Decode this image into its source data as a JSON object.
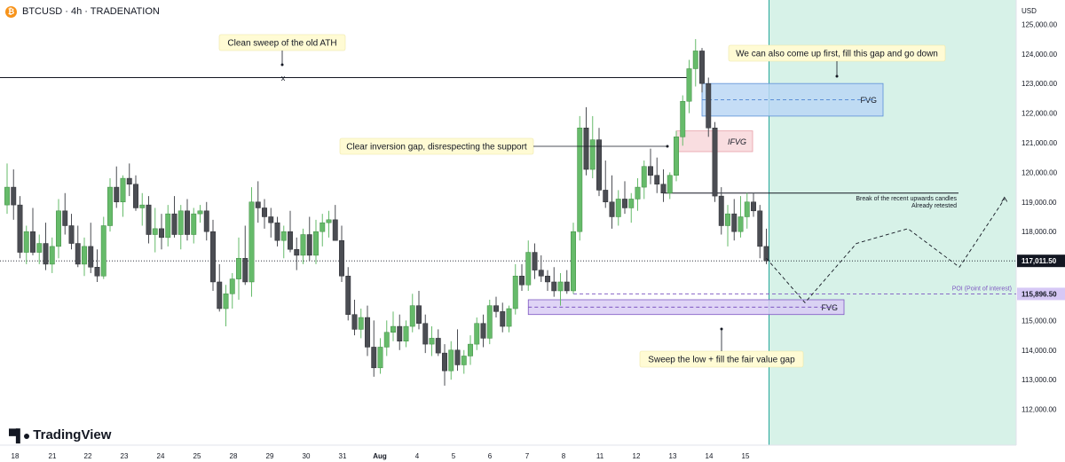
{
  "header": {
    "icon": "bitcoin-icon",
    "title": "BTCUSD · 4h · TRADENATION"
  },
  "logo": {
    "icon": "tradingview-logo-icon",
    "text": "TradingView"
  },
  "colors": {
    "up": "#66bb6a",
    "down": "#4b4d53",
    "projection_zone": "#d7f2e8",
    "fvg_blue": "#bbd7f5",
    "fvg_blue_border": "#5b8fd6",
    "ifvg_red": "#f8d7da",
    "fvg_purple": "#d9ccf5",
    "fvg_purple_border": "#7e57c2",
    "callout": "#fffbd4",
    "price_label": "#131722",
    "poi_label": "#d6c8f5"
  },
  "chart_data": {
    "type": "candlestick",
    "symbol": "BTCUSD",
    "timeframe": "4h",
    "y_axis": {
      "title": "USD",
      "range": [
        111200,
        125700
      ],
      "ticks": [
        "112,000.00",
        "113,000.00",
        "114,000.00",
        "115,000.00",
        "116,000.00",
        "117,000.00",
        "118,000.00",
        "119,000.00",
        "120,000.00",
        "121,000.00",
        "122,000.00",
        "123,000.00",
        "124,000.00",
        "125,000.00"
      ]
    },
    "x_axis": {
      "ticks": [
        "18",
        "21",
        "22",
        "23",
        "24",
        "25",
        "28",
        "29",
        "30",
        "31",
        "Aug",
        "4",
        "5",
        "6",
        "7",
        "8",
        "11",
        "12",
        "13",
        "14",
        "15"
      ]
    },
    "candles": [
      [
        118900,
        120300,
        118600,
        119500
      ],
      [
        119500,
        120100,
        118400,
        118900
      ],
      [
        118900,
        119200,
        117100,
        117300
      ],
      [
        117300,
        118200,
        116900,
        118000
      ],
      [
        118000,
        118800,
        117200,
        117300
      ],
      [
        117300,
        117900,
        116900,
        117600
      ],
      [
        117600,
        118300,
        116700,
        116900
      ],
      [
        116900,
        117800,
        116600,
        117500
      ],
      [
        117500,
        119100,
        117100,
        118700
      ],
      [
        118700,
        119300,
        117900,
        118200
      ],
      [
        118200,
        118600,
        117400,
        117600
      ],
      [
        117600,
        118200,
        116800,
        116900
      ],
      [
        116900,
        117800,
        116500,
        117500
      ],
      [
        117500,
        118300,
        116600,
        116800
      ],
      [
        116800,
        117400,
        116300,
        116500
      ],
      [
        116500,
        118500,
        116400,
        118200
      ],
      [
        118200,
        119800,
        118000,
        119500
      ],
      [
        119500,
        120200,
        118800,
        119000
      ],
      [
        119000,
        119900,
        118500,
        119800
      ],
      [
        119800,
        120300,
        119200,
        119600
      ],
      [
        119600,
        119900,
        118700,
        118800
      ],
      [
        118800,
        119300,
        118200,
        118900
      ],
      [
        118900,
        119200,
        117600,
        117900
      ],
      [
        117900,
        118800,
        117300,
        118100
      ],
      [
        118100,
        118600,
        117400,
        117800
      ],
      [
        117800,
        118900,
        117500,
        118600
      ],
      [
        118600,
        119200,
        117800,
        117900
      ],
      [
        117900,
        118900,
        117400,
        118700
      ],
      [
        118700,
        119100,
        117700,
        117900
      ],
      [
        117900,
        118800,
        117600,
        118600
      ],
      [
        118600,
        118900,
        118300,
        118700
      ],
      [
        118700,
        119000,
        117700,
        118000
      ],
      [
        118000,
        118400,
        116000,
        116300
      ],
      [
        116300,
        116900,
        115300,
        115400
      ],
      [
        115400,
        116200,
        114800,
        115900
      ],
      [
        115900,
        116600,
        115400,
        116400
      ],
      [
        116400,
        117800,
        115700,
        117100
      ],
      [
        117100,
        118200,
        116200,
        116300
      ],
      [
        116300,
        119500,
        115800,
        119000
      ],
      [
        119000,
        119700,
        118300,
        118800
      ],
      [
        118800,
        119100,
        118100,
        118500
      ],
      [
        118500,
        118800,
        117800,
        118300
      ],
      [
        118300,
        118500,
        117500,
        117700
      ],
      [
        117700,
        118200,
        117100,
        118000
      ],
      [
        118000,
        118700,
        117300,
        117400
      ],
      [
        117400,
        117800,
        116700,
        117200
      ],
      [
        117200,
        118100,
        116900,
        117900
      ],
      [
        117900,
        118500,
        117000,
        117200
      ],
      [
        117200,
        118400,
        116900,
        118000
      ],
      [
        118000,
        118600,
        117500,
        118300
      ],
      [
        118300,
        118700,
        117800,
        118400
      ],
      [
        118400,
        118900,
        117700,
        117700
      ],
      [
        117700,
        118200,
        116300,
        116500
      ],
      [
        116500,
        116800,
        115000,
        115200
      ],
      [
        115200,
        115700,
        114500,
        114700
      ],
      [
        114700,
        115400,
        114400,
        115100
      ],
      [
        115100,
        115500,
        113800,
        114100
      ],
      [
        114100,
        115000,
        113100,
        113400
      ],
      [
        113400,
        114400,
        113200,
        114100
      ],
      [
        114100,
        115000,
        113800,
        114600
      ],
      [
        114600,
        115300,
        114300,
        114800
      ],
      [
        114800,
        115200,
        114000,
        114300
      ],
      [
        114300,
        115000,
        114100,
        114800
      ],
      [
        114800,
        115900,
        114600,
        115500
      ],
      [
        115500,
        116000,
        114700,
        114900
      ],
      [
        114900,
        115200,
        113900,
        114200
      ],
      [
        114200,
        114800,
        113800,
        114400
      ],
      [
        114400,
        114700,
        113800,
        113900
      ],
      [
        113900,
        114200,
        112800,
        113300
      ],
      [
        113300,
        114300,
        113000,
        114000
      ],
      [
        114000,
        114700,
        113300,
        113500
      ],
      [
        113500,
        114000,
        113200,
        113800
      ],
      [
        113800,
        114500,
        113500,
        114200
      ],
      [
        114200,
        115100,
        114000,
        114900
      ],
      [
        114900,
        115200,
        114100,
        114400
      ],
      [
        114400,
        115700,
        114200,
        115500
      ],
      [
        115500,
        115800,
        115100,
        115300
      ],
      [
        115300,
        115600,
        114600,
        114800
      ],
      [
        114800,
        115500,
        114600,
        115400
      ],
      [
        115400,
        116900,
        115200,
        116500
      ],
      [
        116500,
        116900,
        116000,
        116200
      ],
      [
        116200,
        117700,
        116000,
        117300
      ],
      [
        117300,
        117600,
        116400,
        116700
      ],
      [
        116700,
        117200,
        116300,
        116500
      ],
      [
        116500,
        116700,
        116000,
        116300
      ],
      [
        116300,
        116800,
        115800,
        116000
      ],
      [
        116000,
        116600,
        115500,
        116300
      ],
      [
        116300,
        116700,
        115900,
        116000
      ],
      [
        116000,
        118300,
        115900,
        118000
      ],
      [
        118000,
        121900,
        117700,
        121500
      ],
      [
        121500,
        122200,
        119900,
        120100
      ],
      [
        120100,
        121900,
        119800,
        121100
      ],
      [
        121100,
        121500,
        119200,
        119400
      ],
      [
        119400,
        120400,
        118800,
        119000
      ],
      [
        119000,
        119900,
        118100,
        118500
      ],
      [
        118500,
        119400,
        118200,
        119100
      ],
      [
        119100,
        119700,
        118600,
        118800
      ],
      [
        118800,
        119300,
        118300,
        119100
      ],
      [
        119100,
        119800,
        118700,
        119500
      ],
      [
        119500,
        120400,
        119100,
        120200
      ],
      [
        120200,
        120800,
        119600,
        119900
      ],
      [
        119900,
        120500,
        119300,
        119600
      ],
      [
        119600,
        120100,
        119000,
        119300
      ],
      [
        119300,
        120000,
        119100,
        119900
      ],
      [
        119900,
        121400,
        119700,
        121200
      ],
      [
        121200,
        122600,
        120900,
        122400
      ],
      [
        122400,
        123800,
        122000,
        123500
      ],
      [
        123500,
        124500,
        122900,
        124100
      ],
      [
        124100,
        124200,
        122700,
        123000
      ],
      [
        123000,
        123200,
        121200,
        121500
      ],
      [
        121500,
        121700,
        119000,
        119200
      ],
      [
        119200,
        119500,
        117900,
        118200
      ],
      [
        118200,
        118900,
        117500,
        118600
      ],
      [
        118600,
        119100,
        117700,
        118000
      ],
      [
        118000,
        119200,
        117800,
        118500
      ],
      [
        118500,
        119300,
        118100,
        119000
      ],
      [
        119000,
        119300,
        118500,
        118700
      ],
      [
        118700,
        118900,
        117100,
        117500
      ],
      [
        117500,
        118100,
        116900,
        117012
      ]
    ],
    "horizontal_levels": [
      {
        "label": "old ATH",
        "price": 123200
      },
      {
        "label": "support",
        "price": 119300
      },
      {
        "label": "current",
        "price": 117011.5
      },
      {
        "label": "POI (Point of interest)",
        "price": 115896.5
      }
    ],
    "zones": [
      {
        "label": "FVG",
        "top": 123000,
        "bottom": 121900
      },
      {
        "label": "IFVG",
        "top": 121400,
        "bottom": 120700
      },
      {
        "label": "FVG",
        "top": 115700,
        "bottom": 115200
      }
    ],
    "price_labels": [
      {
        "value": "117,011.50",
        "price": 117011.5
      },
      {
        "value": "115,896.50",
        "price": 115896.5
      }
    ],
    "projection_path": [
      [
        0,
        117100
      ],
      [
        6,
        115600
      ],
      [
        14,
        117600
      ],
      [
        22,
        118100
      ],
      [
        30,
        116800
      ],
      [
        37,
        119100
      ]
    ],
    "annotations": {
      "ath_callout": "Clean sweep of the old ATH",
      "ath_marker": "x",
      "inversion_callout": "Clear inversion gap, disrespecting the support",
      "upper_callout": "We can also come up first, fill this gap and go down",
      "lower_callout": "Sweep the low + fill the fair value gap",
      "support_note_line1": "Break of the recent upwards candles",
      "support_note_line2": "Already retested",
      "poi_note": "POI (Point of interest)",
      "fvg_upper": "FVG",
      "ifvg": "IFVG",
      "fvg_lower": "FVG"
    }
  }
}
